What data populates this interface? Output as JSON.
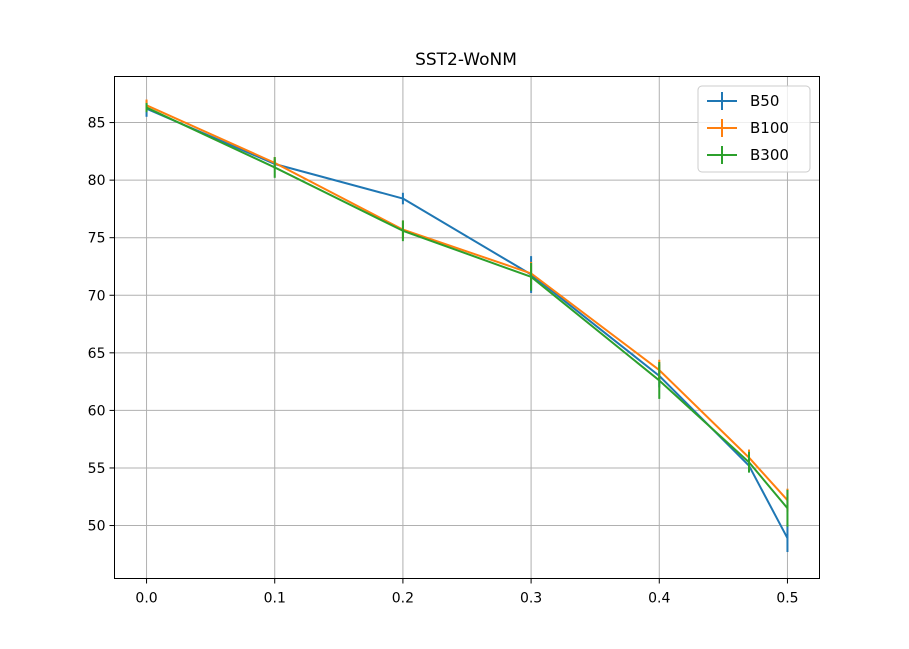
{
  "chart_data": {
    "type": "line",
    "title": "SST2-WoNM",
    "xlabel": "",
    "ylabel": "",
    "xlim": [
      -0.025,
      0.525
    ],
    "ylim": [
      45.4,
      89.0
    ],
    "grid": true,
    "legend_position": "top-right",
    "x_ticks": [
      0.0,
      0.1,
      0.2,
      0.3,
      0.4,
      0.5
    ],
    "x_tick_labels": [
      "0.0",
      "0.1",
      "0.2",
      "0.3",
      "0.4",
      "0.5"
    ],
    "y_ticks": [
      50,
      55,
      60,
      65,
      70,
      75,
      80,
      85
    ],
    "y_tick_labels": [
      "50",
      "55",
      "60",
      "65",
      "70",
      "75",
      "80",
      "85"
    ],
    "series": [
      {
        "name": "B50",
        "color": "#1f77b4",
        "x": [
          0.0,
          0.1,
          0.2,
          0.3,
          0.4,
          0.47,
          0.5
        ],
        "y": [
          86.2,
          81.4,
          78.4,
          71.8,
          63.0,
          55.2,
          48.9
        ],
        "yerr": [
          0.7,
          0.4,
          0.5,
          1.6,
          1.0,
          0.6,
          1.2
        ]
      },
      {
        "name": "B100",
        "color": "#ff7f0e",
        "x": [
          0.0,
          0.1,
          0.2,
          0.3,
          0.4,
          0.47,
          0.5
        ],
        "y": [
          86.5,
          81.5,
          75.7,
          71.9,
          63.5,
          55.9,
          52.2
        ],
        "yerr": [
          0.5,
          0.5,
          0.8,
          1.0,
          0.9,
          0.7,
          1.0
        ]
      },
      {
        "name": "B300",
        "color": "#2ca02c",
        "x": [
          0.0,
          0.1,
          0.2,
          0.3,
          0.4,
          0.47,
          0.5
        ],
        "y": [
          86.3,
          81.1,
          75.6,
          71.6,
          62.6,
          55.5,
          51.5
        ],
        "yerr": [
          0.4,
          0.9,
          0.9,
          1.2,
          1.6,
          0.9,
          1.6
        ]
      }
    ]
  }
}
